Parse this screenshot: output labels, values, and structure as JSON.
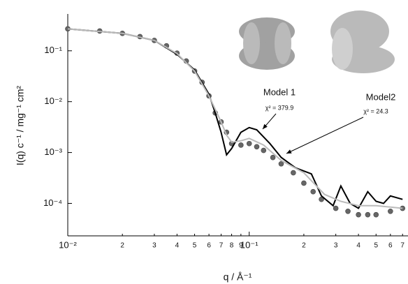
{
  "chart_data": {
    "type": "line",
    "xlabel": "q / Å⁻¹",
    "ylabel": "I(q) c⁻¹ / mg⁻¹ cm²",
    "xscale": "log",
    "yscale": "log",
    "xlim": [
      0.01,
      0.75
    ],
    "ylim": [
      2.3e-05,
      0.53
    ],
    "xticks": [
      {
        "value": 0.01,
        "label": "10⁻²"
      },
      {
        "value": 0.02,
        "label": "2"
      },
      {
        "value": 0.03,
        "label": "3"
      },
      {
        "value": 0.04,
        "label": "4"
      },
      {
        "value": 0.05,
        "label": "5"
      },
      {
        "value": 0.06,
        "label": "6"
      },
      {
        "value": 0.07,
        "label": "7"
      },
      {
        "value": 0.08,
        "label": "8"
      },
      {
        "value": 0.09,
        "label": "9"
      },
      {
        "value": 0.1,
        "label": "10⁻¹"
      },
      {
        "value": 0.2,
        "label": "2"
      },
      {
        "value": 0.3,
        "label": "3"
      },
      {
        "value": 0.4,
        "label": "4"
      },
      {
        "value": 0.5,
        "label": "5"
      },
      {
        "value": 0.6,
        "label": "6"
      },
      {
        "value": 0.7,
        "label": "7"
      }
    ],
    "yticks": [
      {
        "value": 0.1,
        "label": "10⁻¹"
      },
      {
        "value": 0.01,
        "label": "10⁻²"
      },
      {
        "value": 0.001,
        "label": "10⁻³"
      },
      {
        "value": 0.0001,
        "label": "10⁻⁴"
      }
    ],
    "series": [
      {
        "color": "#666666",
        "marker": true,
        "x": [
          0.01,
          0.015,
          0.02,
          0.025,
          0.03,
          0.035,
          0.04,
          0.045,
          0.05,
          0.055,
          0.06,
          0.065,
          0.07,
          0.075,
          0.08,
          0.09,
          0.1,
          0.11,
          0.12,
          0.135,
          0.15,
          0.175,
          0.2,
          0.225,
          0.25,
          0.3,
          0.35,
          0.4,
          0.45,
          0.5,
          0.6,
          0.7
        ],
        "values": [
          0.27,
          0.245,
          0.22,
          0.19,
          0.16,
          0.125,
          0.09,
          0.063,
          0.04,
          0.024,
          0.013,
          0.006,
          0.004,
          0.0025,
          0.0015,
          0.0014,
          0.0015,
          0.0013,
          0.0011,
          0.0008,
          0.0006,
          0.0004,
          0.00025,
          0.00017,
          0.00012,
          8e-05,
          7e-05,
          6e-05,
          6e-05,
          6e-05,
          7e-05,
          8e-05
        ]
      },
      {
        "name": "Model 1",
        "color": "#000000",
        "x": [
          0.01,
          0.02,
          0.03,
          0.04,
          0.05,
          0.06,
          0.065,
          0.07,
          0.075,
          0.08,
          0.09,
          0.1,
          0.11,
          0.13,
          0.15,
          0.18,
          0.22,
          0.25,
          0.29,
          0.32,
          0.36,
          0.4,
          0.45,
          0.5,
          0.55,
          0.6,
          0.7
        ],
        "values": [
          0.27,
          0.22,
          0.16,
          0.085,
          0.042,
          0.014,
          0.006,
          0.0025,
          0.0009,
          0.0012,
          0.0025,
          0.0031,
          0.0028,
          0.0015,
          0.0008,
          0.0005,
          0.00038,
          0.00014,
          9e-05,
          0.00022,
          0.0001,
          8e-05,
          0.00017,
          0.00011,
          0.0001,
          0.00014,
          0.00012
        ]
      },
      {
        "name": "Model2",
        "color": "#bbbbbb",
        "x": [
          0.01,
          0.02,
          0.03,
          0.04,
          0.05,
          0.06,
          0.07,
          0.075,
          0.08,
          0.09,
          0.1,
          0.12,
          0.15,
          0.2,
          0.26,
          0.32,
          0.4,
          0.5,
          0.7
        ],
        "values": [
          0.27,
          0.22,
          0.16,
          0.088,
          0.04,
          0.013,
          0.004,
          0.0022,
          0.0016,
          0.0017,
          0.0019,
          0.0014,
          0.0007,
          0.0004,
          0.00015,
          0.00011,
          9e-05,
          9e-05,
          8e-05
        ]
      }
    ],
    "annotations": [
      {
        "text": "χ² = 379.9"
      },
      {
        "text": "χ² = 24.3"
      }
    ]
  }
}
